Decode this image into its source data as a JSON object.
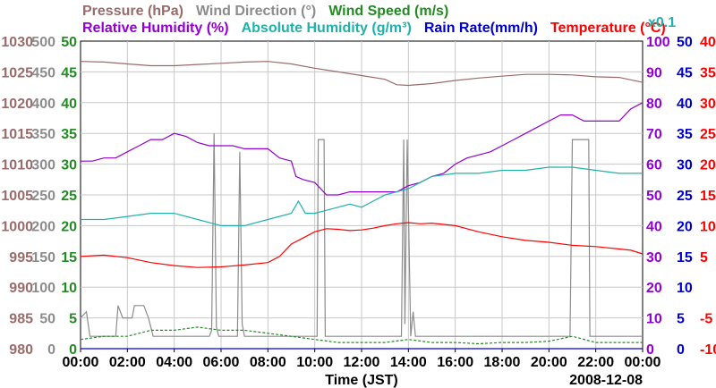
{
  "chart_data": {
    "type": "line",
    "title_row1": [
      {
        "text": "Pressure (hPa)",
        "color": "#9a6b6b"
      },
      {
        "text": "Wind Direction (°)",
        "color": "#8c8c8c"
      },
      {
        "text": "Wind Speed (m/s)",
        "color": "#228b22"
      }
    ],
    "title_row2": [
      {
        "text": "Relative Humidity (%)",
        "color": "#9400d3"
      },
      {
        "text": "Absolute Humidity (g/m³)",
        "color": "#20b2aa"
      },
      {
        "text": "Rain Rate(mm/h)",
        "color": "#0000cd"
      },
      {
        "text": "Temperature (°C)",
        "color": "#ff0000"
      }
    ],
    "x_factor_label": "x0.1",
    "xlabel": "Time (JST)",
    "date_label": "2008-12-08",
    "x_ticks": [
      "00:00",
      "02:00",
      "04:00",
      "06:00",
      "08:00",
      "10:00",
      "12:00",
      "14:00",
      "16:00",
      "18:00",
      "20:00",
      "22:00",
      "00:00"
    ],
    "x_range": [
      0,
      24
    ],
    "axes": {
      "pressure": {
        "ticks": [
          "1030",
          "1025",
          "1020",
          "1015",
          "1010",
          "1005",
          "1000",
          "995",
          "990",
          "985",
          "980"
        ],
        "range": [
          980,
          1030
        ],
        "color": "#9a6b6b"
      },
      "wind_direction": {
        "ticks": [
          "500",
          "450",
          "400",
          "350",
          "300",
          "250",
          "200",
          "150",
          "100",
          "50",
          "0"
        ],
        "range": [
          0,
          500
        ],
        "color": "#8c8c8c"
      },
      "wind_speed": {
        "ticks": [
          "50",
          "45",
          "40",
          "35",
          "30",
          "25",
          "20",
          "15",
          "10",
          "5",
          "0"
        ],
        "range": [
          0,
          50
        ],
        "color": "#228b22"
      },
      "relative_humidity": {
        "ticks": [
          "100",
          "90",
          "80",
          "70",
          "60",
          "50",
          "40",
          "30",
          "20",
          "10",
          "0"
        ],
        "range": [
          0,
          100
        ],
        "color": "#9400d3"
      },
      "rain_rate": {
        "ticks": [
          "50",
          "45",
          "40",
          "35",
          "30",
          "25",
          "20",
          "15",
          "10",
          "5",
          "0"
        ],
        "range": [
          0,
          50
        ],
        "color": "#0000cd"
      },
      "temperature": {
        "ticks": [
          "40",
          "35",
          "30",
          "25",
          "20",
          "15",
          "10",
          "5",
          "-5",
          "-10"
        ],
        "range": [
          -10,
          40
        ],
        "color": "#ff0000"
      }
    },
    "grid": true,
    "series": [
      {
        "name": "Pressure (hPa)",
        "axis": "pressure",
        "color": "#9a6b6b",
        "x": [
          0,
          1,
          2,
          3,
          4,
          5,
          6,
          7,
          8,
          9,
          10,
          11,
          12,
          13,
          13.5,
          14,
          15,
          16,
          17,
          18,
          19,
          20,
          21,
          22,
          23,
          24
        ],
        "y": [
          1026.7,
          1026.6,
          1026.3,
          1026,
          1026,
          1026.2,
          1026.4,
          1026.6,
          1026.7,
          1026.3,
          1025.6,
          1025,
          1024.4,
          1023.8,
          1022.9,
          1022.8,
          1023.1,
          1023.6,
          1024,
          1024.3,
          1024.6,
          1024.6,
          1024.5,
          1024.2,
          1024.1,
          1023.3
        ]
      },
      {
        "name": "Wind Direction (°)",
        "axis": "wind_direction",
        "color": "#8c8c8c",
        "x": [
          0,
          0.25,
          0.4,
          1.5,
          1.6,
          1.8,
          2.2,
          2.3,
          2.7,
          2.9,
          3.1,
          5.5,
          5.6,
          5.7,
          5.8,
          5.9,
          6.7,
          6.8,
          6.9,
          7.0,
          7.1,
          10.1,
          10.15,
          10.4,
          10.45,
          13.7,
          13.8,
          13.85,
          13.95,
          14.1,
          14.2,
          14.3,
          14.4,
          20.9,
          21,
          21.7,
          21.75,
          24
        ],
        "y": [
          50,
          60,
          20,
          20,
          70,
          50,
          50,
          70,
          70,
          50,
          20,
          20,
          30,
          350,
          35,
          20,
          20,
          320,
          40,
          20,
          20,
          20,
          340,
          340,
          20,
          20,
          340,
          40,
          340,
          20,
          60,
          20,
          20,
          20,
          340,
          340,
          20,
          20
        ]
      },
      {
        "name": "Wind Speed (m/s)",
        "axis": "wind_speed",
        "color": "#228b22",
        "x": [
          0,
          1,
          2,
          3,
          4,
          5,
          6,
          7,
          8,
          9,
          10,
          11,
          12,
          13,
          14,
          15,
          16,
          17,
          18,
          19,
          20,
          21,
          22,
          23,
          24
        ],
        "y": [
          1.5,
          2,
          2,
          3,
          3,
          3.5,
          3,
          3,
          2.5,
          2,
          1.5,
          1,
          1,
          1,
          1.5,
          1,
          1,
          0.8,
          1,
          1,
          1.2,
          2,
          1,
          1,
          1
        ]
      },
      {
        "name": "Relative Humidity (%)",
        "axis": "relative_humidity",
        "color": "#9400d3",
        "x": [
          0,
          0.5,
          1,
          1.5,
          2,
          2.5,
          3,
          3.5,
          4,
          4.5,
          5,
          5.5,
          6,
          6.5,
          7,
          7.5,
          8,
          8.5,
          9,
          9.2,
          9.5,
          10,
          10.5,
          11,
          11.5,
          12,
          12.5,
          13,
          13.5,
          14,
          14.5,
          15,
          15.5,
          16,
          16.5,
          17,
          17.5,
          18,
          18.5,
          19,
          19.5,
          20,
          20.5,
          21,
          21.5,
          22,
          22.5,
          23,
          23.5,
          24
        ],
        "y": [
          61,
          61,
          62,
          62,
          64,
          66,
          68,
          68,
          70,
          69,
          67,
          66,
          66,
          66,
          65,
          65,
          65,
          62,
          61,
          56,
          55,
          54,
          50,
          50,
          51,
          51,
          51,
          51,
          51,
          53,
          54,
          56,
          57,
          60,
          62,
          63,
          64,
          66,
          68,
          70,
          72,
          74,
          76,
          76,
          74,
          74,
          74,
          74,
          78,
          80
        ]
      },
      {
        "name": "Absolute Humidity (g/m³)",
        "axis": "wind_speed",
        "color": "#20b2aa",
        "x": [
          0,
          1,
          2,
          3,
          4,
          5,
          6,
          7,
          8,
          9,
          9.3,
          9.6,
          10,
          10.5,
          11,
          11.5,
          12,
          12.5,
          13,
          13.5,
          14,
          14.5,
          15,
          16,
          17,
          18,
          19,
          20,
          21,
          22,
          23,
          24
        ],
        "y": [
          21,
          21,
          21.5,
          22,
          22,
          21,
          20,
          20,
          21,
          22,
          24,
          22,
          22,
          22.5,
          23,
          23.5,
          23,
          24,
          25,
          25.5,
          26,
          27,
          28,
          28.5,
          28.5,
          29,
          29,
          29.5,
          29.5,
          29,
          28.5,
          28.5
        ]
      },
      {
        "name": "Temperature (°C)",
        "axis": "temperature",
        "color": "#ff0000",
        "x": [
          0,
          1,
          2,
          3,
          4,
          5,
          6,
          7,
          8,
          8.5,
          9,
          9.5,
          10,
          10.5,
          11,
          11.5,
          12,
          12.5,
          13,
          13.5,
          14,
          14.5,
          15,
          16,
          17,
          18,
          19,
          20,
          21,
          22,
          23,
          23.5,
          24
        ],
        "y": [
          5,
          5.2,
          4.8,
          4,
          3.5,
          3.2,
          3.3,
          3.6,
          4,
          5,
          7,
          8,
          9,
          9.5,
          9.4,
          9.2,
          9.3,
          9.6,
          10,
          10.3,
          10.5,
          10.3,
          10.4,
          10,
          9,
          8.2,
          7.6,
          7.3,
          6.8,
          6.6,
          6.2,
          6,
          5.4
        ]
      },
      {
        "name": "Rain Rate(mm/h)",
        "axis": "rain_rate",
        "color": "#0000cd",
        "x": [
          0,
          24
        ],
        "y": [
          0,
          0
        ]
      }
    ]
  }
}
